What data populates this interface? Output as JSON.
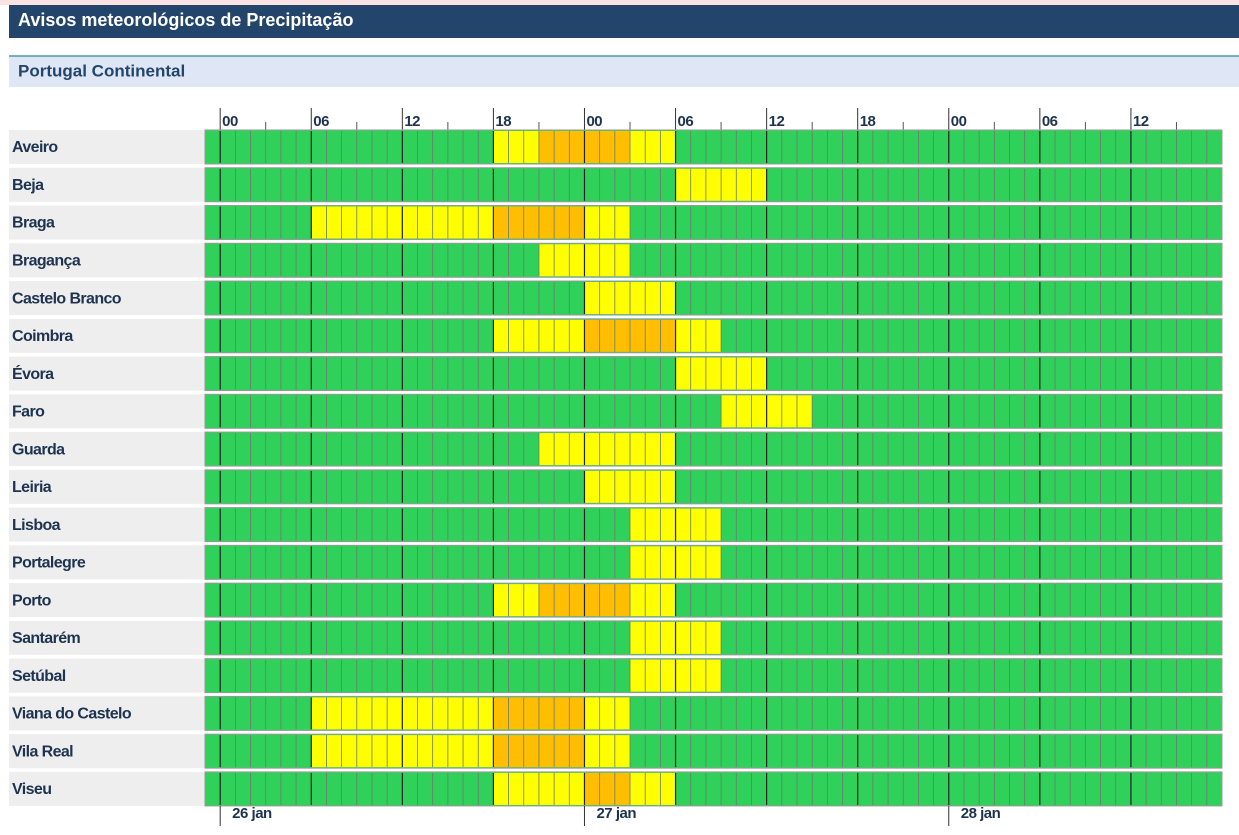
{
  "title": "Avisos meteorológicos de Precipitação",
  "region": "Portugal Continental",
  "hour_range": [
    -1,
    66
  ],
  "hour_ticks": [
    {
      "value": 0,
      "label": "00"
    },
    {
      "value": 6,
      "label": "06"
    },
    {
      "value": 12,
      "label": "12"
    },
    {
      "value": 18,
      "label": "18"
    },
    {
      "value": 24,
      "label": "00"
    },
    {
      "value": 30,
      "label": "06"
    },
    {
      "value": 36,
      "label": "12"
    },
    {
      "value": 42,
      "label": "18"
    },
    {
      "value": 48,
      "label": "00"
    },
    {
      "value": 54,
      "label": "06"
    },
    {
      "value": 60,
      "label": "12"
    }
  ],
  "days": [
    {
      "value": 0,
      "label": "26 jan"
    },
    {
      "value": 24,
      "label": "27 jan"
    },
    {
      "value": 48,
      "label": "28 jan"
    }
  ],
  "colors": {
    "green": "#2fd15a",
    "yellow": "#ffff00",
    "orange": "#ffbf00"
  },
  "districts": [
    {
      "name": "Aveiro",
      "warnings": [
        {
          "level": "yellow",
          "start": 18,
          "end": 21
        },
        {
          "level": "orange",
          "start": 21,
          "end": 27
        },
        {
          "level": "yellow",
          "start": 27,
          "end": 30
        }
      ]
    },
    {
      "name": "Beja",
      "warnings": [
        {
          "level": "yellow",
          "start": 30,
          "end": 36
        }
      ]
    },
    {
      "name": "Braga",
      "warnings": [
        {
          "level": "yellow",
          "start": 6,
          "end": 18
        },
        {
          "level": "orange",
          "start": 18,
          "end": 24
        },
        {
          "level": "yellow",
          "start": 24,
          "end": 27
        }
      ]
    },
    {
      "name": "Bragança",
      "warnings": [
        {
          "level": "yellow",
          "start": 21,
          "end": 27
        }
      ]
    },
    {
      "name": "Castelo Branco",
      "warnings": [
        {
          "level": "yellow",
          "start": 24,
          "end": 30
        }
      ]
    },
    {
      "name": "Coimbra",
      "warnings": [
        {
          "level": "yellow",
          "start": 18,
          "end": 24
        },
        {
          "level": "orange",
          "start": 24,
          "end": 30
        },
        {
          "level": "yellow",
          "start": 30,
          "end": 33
        }
      ]
    },
    {
      "name": "Évora",
      "warnings": [
        {
          "level": "yellow",
          "start": 30,
          "end": 36
        }
      ]
    },
    {
      "name": "Faro",
      "warnings": [
        {
          "level": "yellow",
          "start": 33,
          "end": 39
        }
      ]
    },
    {
      "name": "Guarda",
      "warnings": [
        {
          "level": "yellow",
          "start": 21,
          "end": 30
        }
      ]
    },
    {
      "name": "Leiria",
      "warnings": [
        {
          "level": "yellow",
          "start": 24,
          "end": 30
        }
      ]
    },
    {
      "name": "Lisboa",
      "warnings": [
        {
          "level": "yellow",
          "start": 27,
          "end": 33
        }
      ]
    },
    {
      "name": "Portalegre",
      "warnings": [
        {
          "level": "yellow",
          "start": 27,
          "end": 33
        }
      ]
    },
    {
      "name": "Porto",
      "warnings": [
        {
          "level": "yellow",
          "start": 18,
          "end": 21
        },
        {
          "level": "orange",
          "start": 21,
          "end": 27
        },
        {
          "level": "yellow",
          "start": 27,
          "end": 30
        }
      ]
    },
    {
      "name": "Santarém",
      "warnings": [
        {
          "level": "yellow",
          "start": 27,
          "end": 33
        }
      ]
    },
    {
      "name": "Setúbal",
      "warnings": [
        {
          "level": "yellow",
          "start": 27,
          "end": 33
        }
      ]
    },
    {
      "name": "Viana do Castelo",
      "warnings": [
        {
          "level": "yellow",
          "start": 6,
          "end": 18
        },
        {
          "level": "orange",
          "start": 18,
          "end": 24
        },
        {
          "level": "yellow",
          "start": 24,
          "end": 27
        }
      ]
    },
    {
      "name": "Vila Real",
      "warnings": [
        {
          "level": "yellow",
          "start": 6,
          "end": 18
        },
        {
          "level": "orange",
          "start": 18,
          "end": 24
        },
        {
          "level": "yellow",
          "start": 24,
          "end": 27
        }
      ]
    },
    {
      "name": "Viseu",
      "warnings": [
        {
          "level": "yellow",
          "start": 18,
          "end": 24
        },
        {
          "level": "orange",
          "start": 24,
          "end": 27
        },
        {
          "level": "yellow",
          "start": 27,
          "end": 30
        }
      ]
    }
  ]
}
